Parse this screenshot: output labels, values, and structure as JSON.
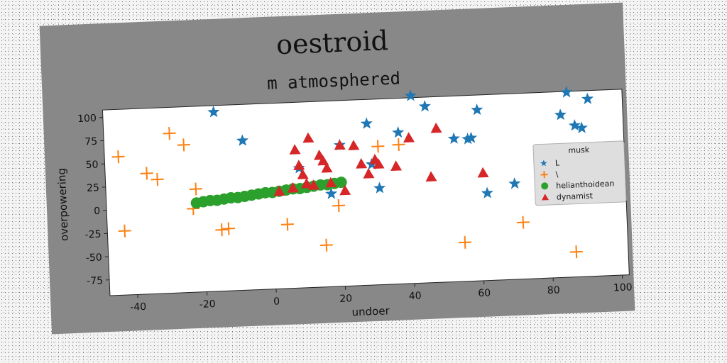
{
  "figure": {
    "title": "oestroid"
  },
  "chart_data": {
    "type": "scatter",
    "title": "m atmosphered",
    "xlabel": "undoer",
    "ylabel": "overpowering",
    "xlim": [
      -48,
      102
    ],
    "ylim": [
      -92,
      108
    ],
    "xticks": [
      -40,
      -20,
      0,
      20,
      40,
      60,
      80,
      100
    ],
    "yticks": [
      -75,
      -50,
      -25,
      0,
      25,
      50,
      75,
      100
    ],
    "grid": false,
    "legend": {
      "title": "musk",
      "position": "right"
    },
    "series": [
      {
        "name": "L",
        "marker": "star",
        "color": "#1f77b4",
        "points": [
          [
            -16,
            101
          ],
          [
            -8,
            69
          ],
          [
            8,
            37
          ],
          [
            20,
            60
          ],
          [
            28,
            82
          ],
          [
            29,
            38
          ],
          [
            31,
            12
          ],
          [
            37,
            71
          ],
          [
            41,
            110
          ],
          [
            45,
            98
          ],
          [
            53,
            62
          ],
          [
            57,
            61
          ],
          [
            58,
            62
          ],
          [
            60,
            92
          ],
          [
            62,
            2
          ],
          [
            70,
            11
          ],
          [
            84,
            83
          ],
          [
            86,
            107
          ],
          [
            88,
            71
          ],
          [
            90,
            68
          ],
          [
            92,
            99
          ],
          [
            17,
            8
          ]
        ]
      },
      {
        "name": "\\",
        "marker": "plus",
        "color": "#ff7f0e",
        "points": [
          [
            -44,
            57
          ],
          [
            -43,
            -23
          ],
          [
            -36,
            38
          ],
          [
            -33,
            31
          ],
          [
            -29,
            80
          ],
          [
            -25,
            67
          ],
          [
            -23,
            -2
          ],
          [
            -22,
            19
          ],
          [
            -15,
            -26
          ],
          [
            -13,
            -25
          ],
          [
            4,
            -23
          ],
          [
            15,
            -47
          ],
          [
            19,
            -5
          ],
          [
            31,
            57
          ],
          [
            37,
            58
          ],
          [
            55,
            -50
          ],
          [
            72,
            -31
          ],
          [
            87,
            -65
          ]
        ]
      },
      {
        "name": "helianthoidean",
        "marker": "circle",
        "color": "#2ca02c",
        "points": [
          [
            -22,
            4
          ],
          [
            -20,
            5
          ],
          [
            -18,
            6
          ],
          [
            -16,
            6
          ],
          [
            -14,
            7
          ],
          [
            -12,
            8
          ],
          [
            -10,
            8
          ],
          [
            -8,
            9
          ],
          [
            -6,
            10
          ],
          [
            -4,
            11
          ],
          [
            -2,
            12
          ],
          [
            0,
            12
          ],
          [
            2,
            13
          ],
          [
            4,
            14
          ],
          [
            6,
            15
          ],
          [
            8,
            15
          ],
          [
            10,
            16
          ],
          [
            12,
            17
          ],
          [
            14,
            18
          ],
          [
            16,
            18
          ],
          [
            18,
            19
          ],
          [
            20,
            20
          ]
        ]
      },
      {
        "name": "dynamist",
        "marker": "triangle",
        "color": "#d62728",
        "points": [
          [
            2,
            13
          ],
          [
            7,
            57
          ],
          [
            8,
            40
          ],
          [
            9,
            30
          ],
          [
            10,
            20
          ],
          [
            11,
            69
          ],
          [
            14,
            50
          ],
          [
            15,
            44
          ],
          [
            16,
            36
          ],
          [
            17,
            20
          ],
          [
            20,
            60
          ],
          [
            21,
            11
          ],
          [
            24,
            59
          ],
          [
            26,
            39
          ],
          [
            28,
            28
          ],
          [
            30,
            43
          ],
          [
            31,
            38
          ],
          [
            36,
            35
          ],
          [
            40,
            65
          ],
          [
            46,
            22
          ],
          [
            48,
            74
          ],
          [
            61,
            24
          ],
          [
            6,
            16
          ],
          [
            12,
            18
          ]
        ]
      }
    ]
  }
}
